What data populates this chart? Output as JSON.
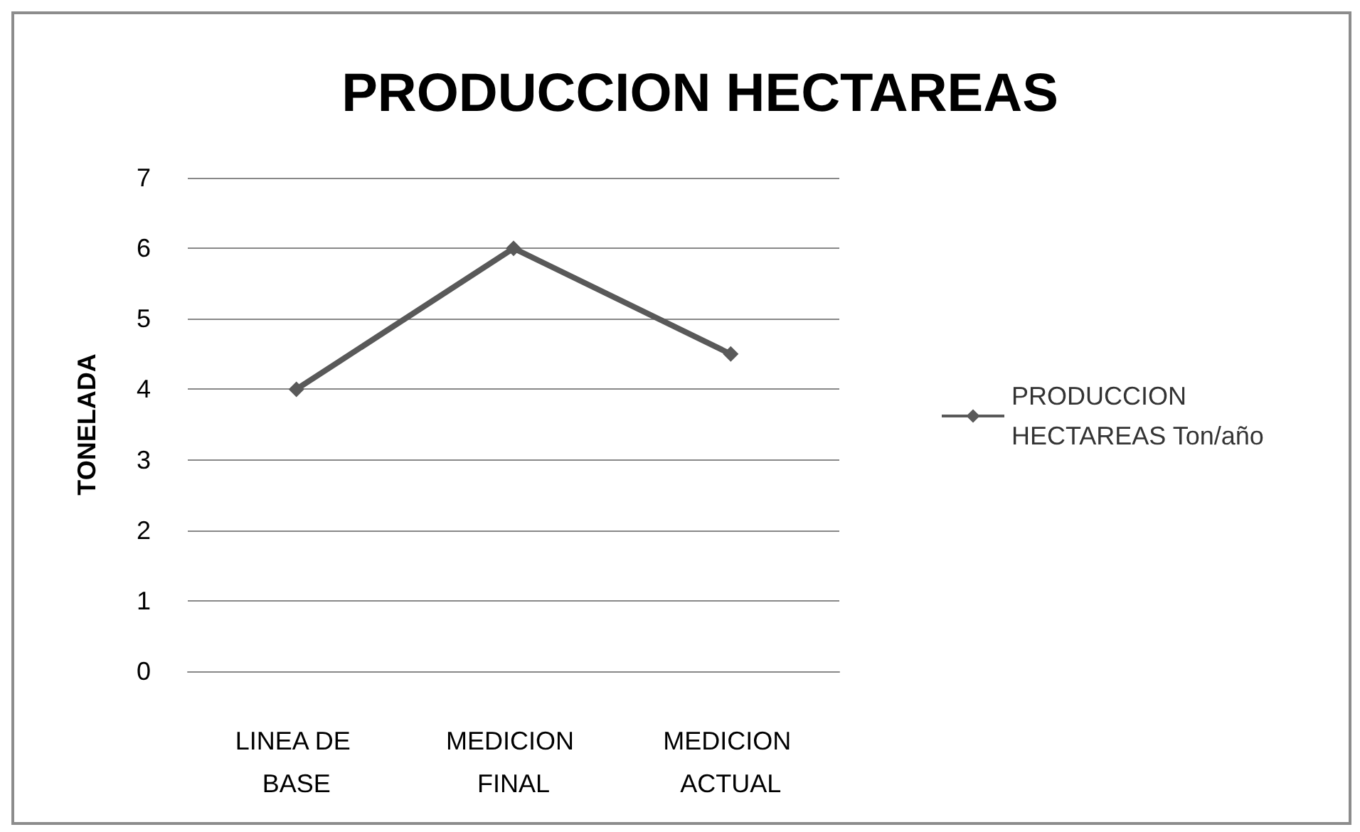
{
  "chart_data": {
    "type": "line",
    "title": "PRODUCCION HECTAREAS",
    "ylabel": "TONELADA",
    "categories": [
      "LINEA DE BASE",
      "MEDICION FINAL",
      "MEDICION ACTUAL"
    ],
    "series": [
      {
        "name": "PRODUCCION HECTAREAS Ton/año",
        "color": "#595959",
        "values": [
          4,
          6,
          4.5
        ]
      }
    ],
    "ylim": [
      0,
      7
    ],
    "yticks": [
      0,
      1,
      2,
      3,
      4,
      5,
      6,
      7
    ],
    "grid": "y",
    "legend": "right",
    "marker": "diamond",
    "line_style": "solid"
  }
}
